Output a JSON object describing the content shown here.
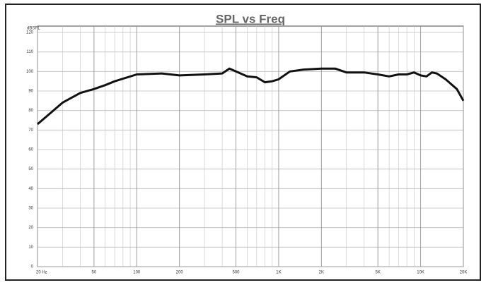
{
  "chart_data": {
    "type": "line",
    "title": "SPL vs Freq",
    "ylabel": "dBSPL",
    "log_x": true,
    "grid": true,
    "xlim": [
      20,
      20000
    ],
    "ylim": [
      0,
      120
    ],
    "xticks": [
      {
        "value": 20,
        "label": "20 Hz"
      },
      50,
      100,
      200,
      500,
      {
        "value": 1000,
        "label": "1K"
      },
      {
        "value": 2000,
        "label": "2K"
      },
      {
        "value": 5000,
        "label": "5K"
      },
      {
        "value": 10000,
        "label": "10K"
      },
      {
        "value": 20000,
        "label": "20K"
      }
    ],
    "yticks": [
      0,
      10,
      20,
      30,
      40,
      50,
      60,
      70,
      80,
      90,
      100,
      110,
      120
    ],
    "series": [
      {
        "name": "SPL",
        "color": "#111111",
        "x": [
          20,
          25,
          30,
          40,
          50,
          60,
          70,
          100,
          150,
          200,
          300,
          400,
          450,
          500,
          600,
          700,
          800,
          900,
          1000,
          1200,
          1500,
          2000,
          2500,
          3000,
          4000,
          5000,
          6000,
          7000,
          8000,
          9000,
          10000,
          11000,
          12000,
          13000,
          15000,
          18000,
          20000
        ],
        "values": [
          73,
          79,
          84,
          89,
          91,
          93,
          95,
          98.5,
          99,
          98,
          98.5,
          99,
          101.5,
          100,
          97.5,
          97,
          94.5,
          95,
          96,
          100,
          101,
          101.5,
          101.5,
          99.5,
          99.5,
          98.5,
          97.5,
          98.5,
          98.5,
          99.5,
          98,
          97.5,
          99.5,
          99,
          96,
          91,
          85
        ]
      }
    ]
  }
}
